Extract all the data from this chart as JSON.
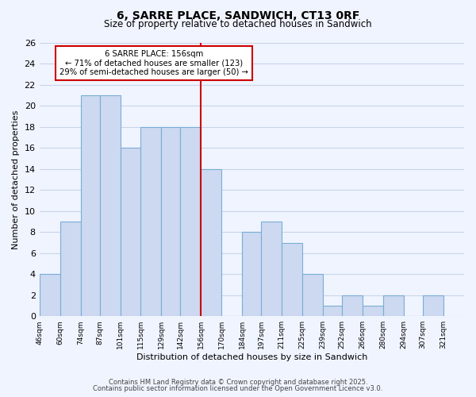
{
  "title": "6, SARRE PLACE, SANDWICH, CT13 0RF",
  "subtitle": "Size of property relative to detached houses in Sandwich",
  "xlabel": "Distribution of detached houses by size in Sandwich",
  "ylabel": "Number of detached properties",
  "bar_edges": [
    46,
    60,
    74,
    87,
    101,
    115,
    129,
    142,
    156,
    170,
    184,
    197,
    211,
    225,
    239,
    252,
    266,
    280,
    294,
    307,
    321
  ],
  "bar_heights": [
    4,
    9,
    21,
    21,
    16,
    18,
    18,
    18,
    14,
    0,
    8,
    9,
    7,
    4,
    1,
    2,
    1,
    2,
    0,
    2
  ],
  "bar_color": "#ccd9f0",
  "bar_edge_color": "#7aadd6",
  "vline_x": 156,
  "vline_color": "#cc0000",
  "annotation_title": "6 SARRE PLACE: 156sqm",
  "annotation_line1": "← 71% of detached houses are smaller (123)",
  "annotation_line2": "29% of semi-detached houses are larger (50) →",
  "annotation_box_color": "#ffffff",
  "annotation_box_edge_color": "#cc0000",
  "ylim": [
    0,
    26
  ],
  "yticks": [
    0,
    2,
    4,
    6,
    8,
    10,
    12,
    14,
    16,
    18,
    20,
    22,
    24,
    26
  ],
  "tick_labels": [
    "46sqm",
    "60sqm",
    "74sqm",
    "87sqm",
    "101sqm",
    "115sqm",
    "129sqm",
    "142sqm",
    "156sqm",
    "170sqm",
    "184sqm",
    "197sqm",
    "211sqm",
    "225sqm",
    "239sqm",
    "252sqm",
    "266sqm",
    "280sqm",
    "294sqm",
    "307sqm",
    "321sqm"
  ],
  "footer1": "Contains HM Land Registry data © Crown copyright and database right 2025.",
  "footer2": "Contains public sector information licensed under the Open Government Licence v3.0.",
  "bg_color": "#f0f4ff",
  "grid_color": "#c8d4e8"
}
